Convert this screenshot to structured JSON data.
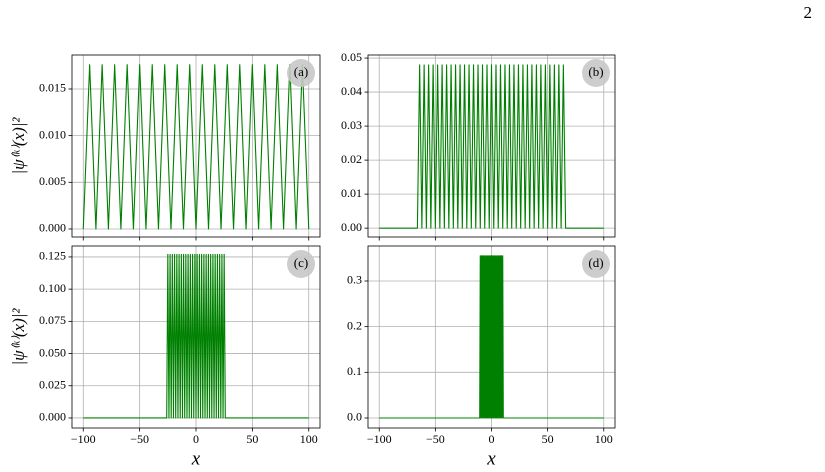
{
  "page_number": "2",
  "chart_data": [
    {
      "type": "line",
      "label": "(a)",
      "ylabel": "|ψ⁽ᵏ⁾(x)|²",
      "color": "#008000",
      "grid": true,
      "xlim": [
        -110,
        110
      ],
      "xticks": [
        -100,
        -50,
        0,
        50,
        100
      ],
      "ylim": [
        -0.00086,
        0.01864
      ],
      "yticks": [
        {
          "value": 0,
          "label": "0.000"
        },
        {
          "value": 0.005,
          "label": "0.005"
        },
        {
          "value": 0.01,
          "label": "0.010"
        },
        {
          "value": 0.015,
          "label": "0.015"
        }
      ],
      "x": [
        -100,
        -94.35,
        -88.8,
        -83.25,
        -77.7,
        -72.15,
        -66.6,
        -61.05,
        -55.5,
        -49.95,
        -44.4,
        -38.85,
        -33.3,
        -27.75,
        -22.2,
        -16.65,
        -11.1,
        -5.55,
        0,
        5.55,
        11.1,
        16.65,
        22.2,
        27.75,
        33.3,
        38.85,
        44.4,
        49.95,
        55.5,
        61.05,
        66.6,
        72.15,
        77.7,
        83.25,
        88.8,
        94.35,
        100
      ],
      "values": [
        0,
        0.0176,
        0,
        0.0176,
        0,
        0.0176,
        0,
        0.0176,
        0,
        0.0176,
        0,
        0.0176,
        0,
        0.0176,
        0,
        0.0176,
        0,
        0.0176,
        0,
        0.0176,
        0,
        0.0176,
        0,
        0.0176,
        0,
        0.0176,
        0,
        0.0176,
        0,
        0.0176,
        0,
        0.0176,
        0,
        0.0176,
        0,
        0.0176,
        0
      ]
    },
    {
      "type": "line",
      "label": "(b)",
      "color": "#008000",
      "grid": true,
      "xlim": [
        -110,
        110
      ],
      "xticks": [
        -100,
        -50,
        0,
        50,
        100
      ],
      "ylim": [
        -0.0026,
        0.0509
      ],
      "yticks": [
        {
          "value": 0,
          "label": "0.00"
        },
        {
          "value": 0.01,
          "label": "0.01"
        },
        {
          "value": 0.02,
          "label": "0.02"
        },
        {
          "value": 0.03,
          "label": "0.03"
        },
        {
          "value": 0.04,
          "label": "0.04"
        },
        {
          "value": 0.05,
          "label": "0.05"
        }
      ],
      "x": [
        -100,
        -66,
        -64,
        -62,
        -60,
        -58,
        -56,
        -54,
        -52,
        -50,
        -48,
        -46,
        -44,
        -42,
        -40,
        -38,
        -36,
        -34,
        -32,
        -30,
        -28,
        -26,
        -24,
        -22,
        -20,
        -18,
        -16,
        -14,
        -12,
        -10,
        -8,
        -6,
        -4,
        -2,
        0,
        2,
        4,
        6,
        8,
        10,
        12,
        14,
        16,
        18,
        20,
        22,
        24,
        26,
        28,
        30,
        32,
        34,
        36,
        38,
        40,
        42,
        44,
        46,
        48,
        50,
        52,
        54,
        56,
        58,
        60,
        62,
        64,
        66,
        100
      ],
      "values": [
        0,
        0,
        0.048,
        0,
        0.048,
        0,
        0.048,
        0,
        0.048,
        0,
        0.048,
        0,
        0.048,
        0,
        0.048,
        0,
        0.048,
        0,
        0.048,
        0,
        0.048,
        0,
        0.048,
        0,
        0.048,
        0,
        0.048,
        0,
        0.048,
        0,
        0.048,
        0,
        0.048,
        0,
        0.048,
        0,
        0.048,
        0,
        0.048,
        0,
        0.048,
        0,
        0.048,
        0,
        0.048,
        0,
        0.048,
        0,
        0.048,
        0,
        0.048,
        0,
        0.048,
        0,
        0.048,
        0,
        0.048,
        0,
        0.048,
        0,
        0.048,
        0,
        0.048,
        0,
        0.048,
        0,
        0.048,
        0,
        0
      ]
    },
    {
      "type": "line",
      "label": "(c)",
      "ylabel": "|ψ⁽ᵏ⁾(x)|²",
      "xlabel": "x",
      "color": "#008000",
      "grid": true,
      "xlim": [
        -110,
        110
      ],
      "xticks": [
        {
          "value": -100,
          "label": "−100"
        },
        {
          "value": -50,
          "label": "−50"
        },
        0,
        50,
        100
      ],
      "ylim": [
        -0.0078,
        0.1335
      ],
      "yticks": [
        {
          "value": 0,
          "label": "0.000"
        },
        {
          "value": 0.025,
          "label": "0.025"
        },
        {
          "value": 0.05,
          "label": "0.050"
        },
        {
          "value": 0.075,
          "label": "0.075"
        },
        {
          "value": 0.1,
          "label": "0.100"
        },
        0.125
      ],
      "x": [
        -100,
        -26,
        -25,
        -24,
        -23,
        -22,
        -21,
        -20,
        -19,
        -18,
        -17,
        -16,
        -15,
        -14,
        -13,
        -12,
        -11,
        -10,
        -9,
        -8,
        -7,
        -6,
        -5,
        -4,
        -3,
        -2,
        -1,
        0,
        1,
        2,
        3,
        4,
        5,
        6,
        7,
        8,
        9,
        10,
        11,
        12,
        13,
        14,
        15,
        16,
        17,
        18,
        19,
        20,
        21,
        22,
        23,
        24,
        25,
        26,
        100
      ],
      "values": [
        0,
        0,
        0.127,
        0,
        0.127,
        0,
        0.127,
        0,
        0.127,
        0,
        0.127,
        0,
        0.127,
        0,
        0.127,
        0,
        0.127,
        0,
        0.127,
        0,
        0.127,
        0,
        0.127,
        0,
        0.127,
        0,
        0.127,
        0,
        0.127,
        0,
        0.127,
        0,
        0.127,
        0,
        0.127,
        0,
        0.127,
        0,
        0.127,
        0,
        0.127,
        0,
        0.127,
        0,
        0.127,
        0,
        0.127,
        0,
        0.127,
        0,
        0.127,
        0,
        0.127,
        0,
        0
      ]
    },
    {
      "type": "line",
      "label": "(d)",
      "xlabel": "x",
      "color": "#008000",
      "grid": true,
      "xlim": [
        -110,
        110
      ],
      "xticks": [
        {
          "value": -100,
          "label": "−100"
        },
        {
          "value": -50,
          "label": "−50"
        },
        0,
        50,
        100
      ],
      "ylim": [
        -0.0219,
        0.3766
      ],
      "yticks": [
        {
          "value": 0,
          "label": "0.0"
        },
        0.1,
        0.2,
        0.3
      ],
      "x": [
        -100,
        -10.5,
        -10,
        -9.5,
        -9,
        -8.5,
        -8,
        -7.5,
        -7,
        -6.5,
        -6,
        -5.5,
        -5,
        -4.5,
        -4,
        -3.5,
        -3,
        -2.5,
        -2,
        -1.5,
        -1,
        -0.5,
        0,
        0.5,
        1,
        1.5,
        2,
        2.5,
        3,
        3.5,
        4,
        4.5,
        5,
        5.5,
        6,
        6.5,
        7,
        7.5,
        8,
        8.5,
        9,
        9.5,
        10,
        10.5,
        100
      ],
      "values": [
        0,
        0,
        0.355,
        0,
        0.355,
        0,
        0.355,
        0,
        0.355,
        0,
        0.355,
        0,
        0.355,
        0,
        0.355,
        0,
        0.355,
        0,
        0.355,
        0,
        0.355,
        0,
        0.355,
        0,
        0.355,
        0,
        0.355,
        0,
        0.355,
        0,
        0.355,
        0,
        0.355,
        0,
        0.355,
        0,
        0.355,
        0,
        0.355,
        0,
        0.355,
        0,
        0.355,
        0,
        0
      ]
    }
  ]
}
